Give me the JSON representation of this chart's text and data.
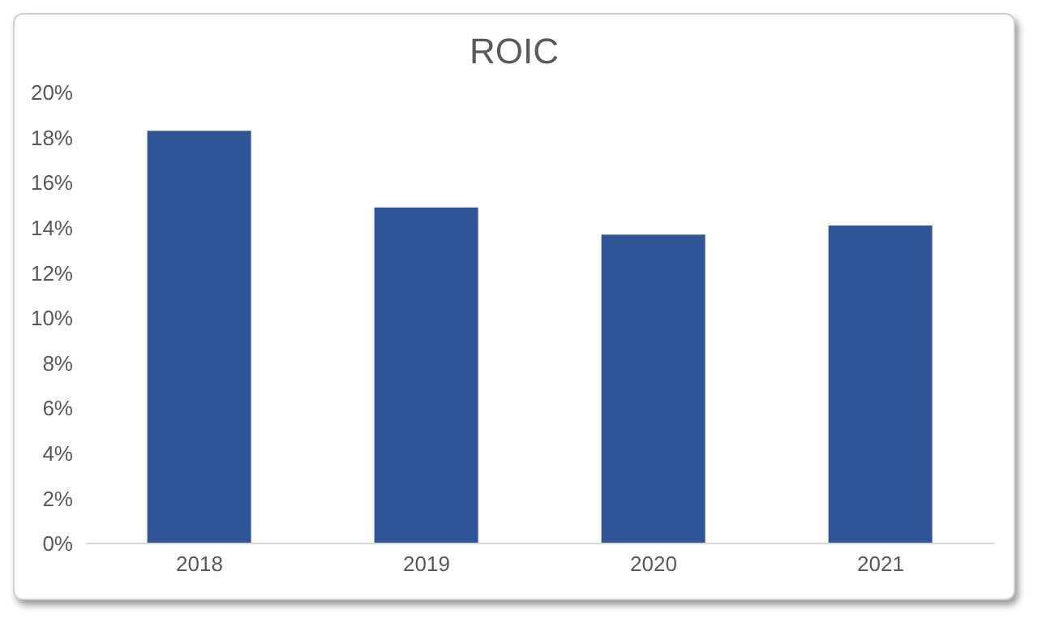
{
  "chart_data": {
    "type": "bar",
    "title": "ROIC",
    "categories": [
      "2018",
      "2019",
      "2020",
      "2021"
    ],
    "values": [
      18.3,
      14.9,
      13.7,
      14.1
    ],
    "color": "#2f5597",
    "ylim": [
      0,
      20
    ],
    "yticks": [
      {
        "value": 0,
        "label": "0%"
      },
      {
        "value": 2,
        "label": "2%"
      },
      {
        "value": 4,
        "label": "4%"
      },
      {
        "value": 6,
        "label": "6%"
      },
      {
        "value": 8,
        "label": "8%"
      },
      {
        "value": 10,
        "label": "10%"
      },
      {
        "value": 12,
        "label": "12%"
      },
      {
        "value": 14,
        "label": "14%"
      },
      {
        "value": 16,
        "label": "16%"
      },
      {
        "value": 18,
        "label": "18%"
      },
      {
        "value": 20,
        "label": "20%"
      }
    ],
    "grid": false,
    "legend": false
  }
}
